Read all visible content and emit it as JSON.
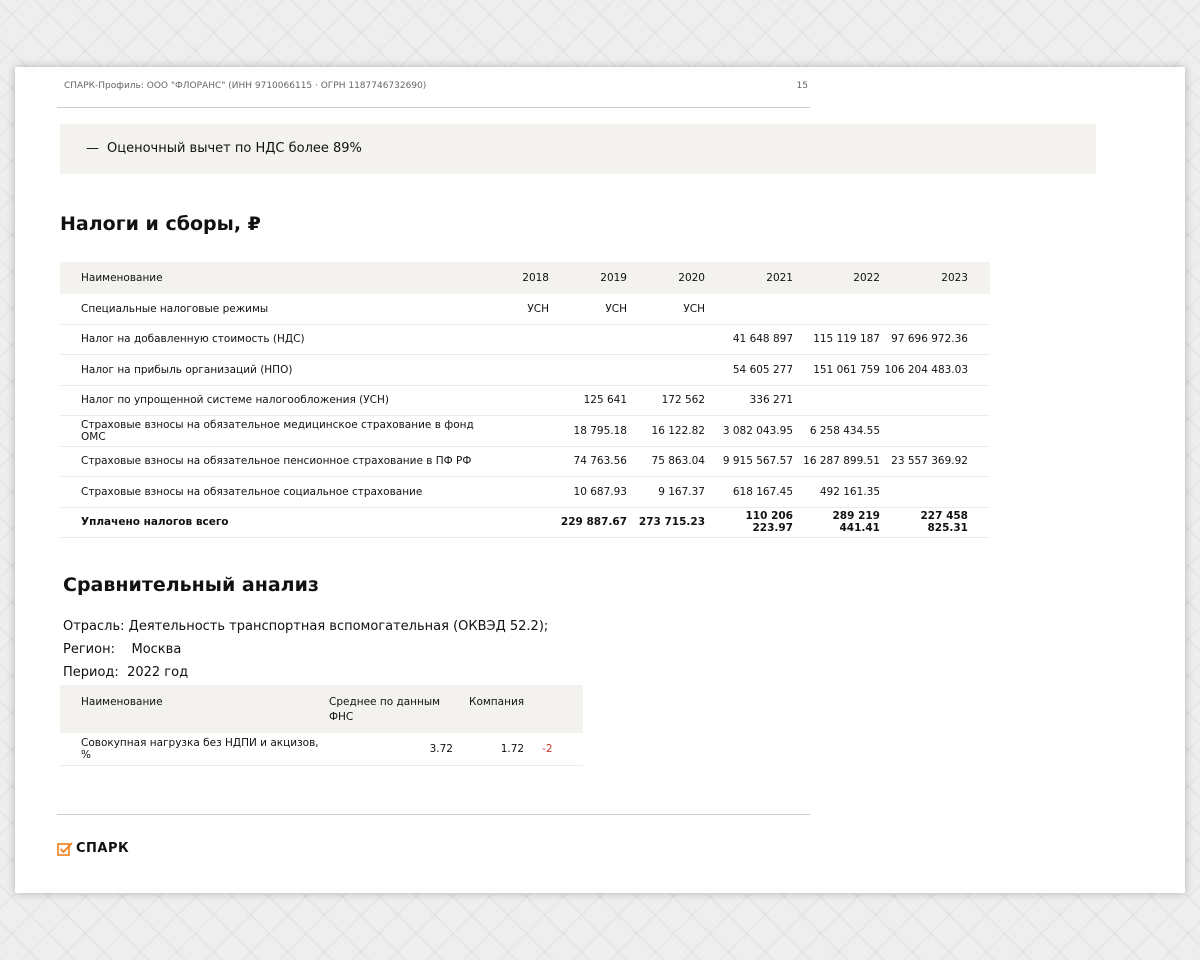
{
  "header": {
    "title": "СПАРК-Профиль: ООО \"ФЛОРАНС\" (ИНН 9710066115 · ОГРН 1187746732690)",
    "page": "15"
  },
  "note": {
    "dash": "—",
    "text": "Оценочный вычет по НДС более 89%"
  },
  "taxes": {
    "title": "Налоги и сборы, ₽",
    "columns": [
      "Наименование",
      "2018",
      "2019",
      "2020",
      "2021",
      "2022",
      "2023"
    ],
    "rows": [
      {
        "name": "Специальные налоговые режимы",
        "values": [
          "УСН",
          "УСН",
          "УСН",
          "",
          "",
          ""
        ]
      },
      {
        "name": "Налог на добавленную стоимость (НДС)",
        "values": [
          "",
          "",
          "",
          "41 648 897",
          "115 119 187",
          "97 696 972.36"
        ]
      },
      {
        "name": "Налог на прибыль организаций (НПО)",
        "values": [
          "",
          "",
          "",
          "54 605 277",
          "151 061 759",
          "106 204 483.03"
        ]
      },
      {
        "name": "Налог по упрощенной системе налогообложения (УСН)",
        "values": [
          "",
          "125 641",
          "172 562",
          "336 271",
          "",
          ""
        ]
      },
      {
        "name": "Страховые взносы на обязательное медицинское страхование в фонд ОМС",
        "values": [
          "",
          "18 795.18",
          "16 122.82",
          "3 082 043.95",
          "6 258 434.55",
          ""
        ]
      },
      {
        "name": "Страховые взносы на обязательное пенсионное страхование в ПФ РФ",
        "values": [
          "",
          "74 763.56",
          "75 863.04",
          "9 915 567.57",
          "16 287 899.51",
          "23 557 369.92"
        ]
      },
      {
        "name": "Страховые взносы на обязательное социальное страхование",
        "values": [
          "",
          "10 687.93",
          "9 167.37",
          "618 167.45",
          "492 161.35",
          ""
        ]
      }
    ],
    "total": {
      "name": "Уплачено налогов всего",
      "values": [
        "",
        "229 887.67",
        "273 715.23",
        "110 206 223.97",
        "289 219 441.41",
        "227 458 825.31"
      ]
    }
  },
  "comparison": {
    "title": "Сравнительный анализ",
    "industry_label": "Отрасль:",
    "industry": "Деятельность транспортная вспомогательная (ОКВЭД 52.2);",
    "region_label": "Регион:",
    "region": "Москва",
    "period_label": "Период:",
    "period": "2022 год",
    "columns": [
      "Наименование",
      "Среднее по данным ФНС",
      "Компания"
    ],
    "row": {
      "name": "Совокупная нагрузка без НДПИ и акцизов, %",
      "avg": "3.72",
      "company": "1.72",
      "diff": "-2"
    },
    "diff_color": "#d0312d"
  },
  "footer": {
    "logo": "СПАРК",
    "logo_color": "#f07d1a"
  }
}
